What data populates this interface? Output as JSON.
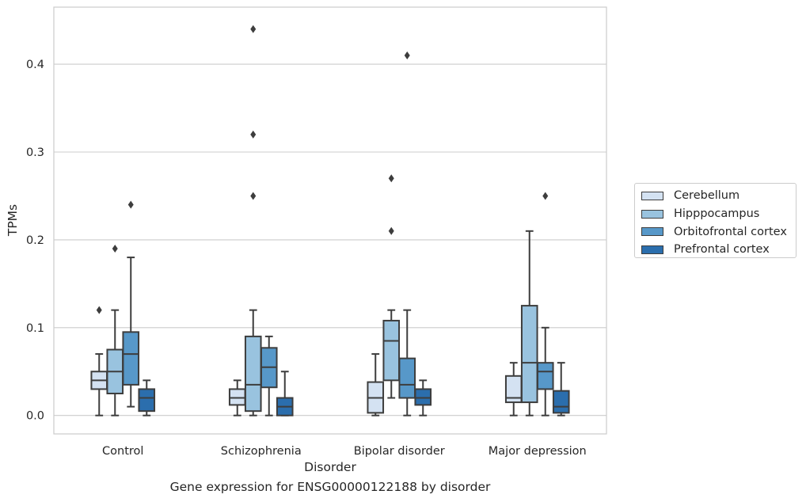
{
  "chart_data": {
    "type": "box",
    "xlabel": "Disorder",
    "ylabel": "TPMs",
    "ylim": [
      -0.021,
      0.465
    ],
    "yticks": [
      0.0,
      0.1,
      0.2,
      0.3,
      0.4
    ],
    "ytick_labels": [
      "0.0",
      "0.1",
      "0.2",
      "0.3",
      "0.4"
    ],
    "grid": "horizontal",
    "legend_position": "right",
    "categories": [
      "Control",
      "Schizophrenia",
      "Bipolar disorder",
      "Major depression"
    ],
    "series": [
      {
        "name": "Cerebellum",
        "color": "#d4e2f2",
        "boxes": [
          {
            "whisker_low": 0.0,
            "q1": 0.03,
            "median": 0.04,
            "q3": 0.05,
            "whisker_high": 0.07,
            "outliers": [
              0.12
            ]
          },
          {
            "whisker_low": 0.0,
            "q1": 0.012,
            "median": 0.02,
            "q3": 0.03,
            "whisker_high": 0.04,
            "outliers": []
          },
          {
            "whisker_low": 0.0,
            "q1": 0.003,
            "median": 0.02,
            "q3": 0.038,
            "whisker_high": 0.07,
            "outliers": []
          },
          {
            "whisker_low": 0.0,
            "q1": 0.015,
            "median": 0.02,
            "q3": 0.045,
            "whisker_high": 0.06,
            "outliers": []
          }
        ]
      },
      {
        "name": "Hipppocampus",
        "color": "#99c3df",
        "boxes": [
          {
            "whisker_low": 0.0,
            "q1": 0.025,
            "median": 0.05,
            "q3": 0.075,
            "whisker_high": 0.12,
            "outliers": [
              0.19
            ]
          },
          {
            "whisker_low": 0.0,
            "q1": 0.005,
            "median": 0.035,
            "q3": 0.09,
            "whisker_high": 0.12,
            "outliers": [
              0.44,
              0.32,
              0.25
            ]
          },
          {
            "whisker_low": 0.02,
            "q1": 0.04,
            "median": 0.085,
            "q3": 0.108,
            "whisker_high": 0.12,
            "outliers": [
              0.27,
              0.21
            ]
          },
          {
            "whisker_low": 0.0,
            "q1": 0.015,
            "median": 0.06,
            "q3": 0.125,
            "whisker_high": 0.21,
            "outliers": []
          }
        ]
      },
      {
        "name": "Orbitofrontal cortex",
        "color": "#5798c9",
        "boxes": [
          {
            "whisker_low": 0.01,
            "q1": 0.035,
            "median": 0.07,
            "q3": 0.095,
            "whisker_high": 0.18,
            "outliers": [
              0.24
            ]
          },
          {
            "whisker_low": 0.0,
            "q1": 0.032,
            "median": 0.055,
            "q3": 0.077,
            "whisker_high": 0.09,
            "outliers": []
          },
          {
            "whisker_low": 0.0,
            "q1": 0.02,
            "median": 0.035,
            "q3": 0.065,
            "whisker_high": 0.12,
            "outliers": [
              0.41
            ]
          },
          {
            "whisker_low": 0.0,
            "q1": 0.03,
            "median": 0.05,
            "q3": 0.06,
            "whisker_high": 0.1,
            "outliers": [
              0.25
            ]
          }
        ]
      },
      {
        "name": "Prefrontal cortex",
        "color": "#2b6ead",
        "boxes": [
          {
            "whisker_low": 0.0,
            "q1": 0.005,
            "median": 0.02,
            "q3": 0.03,
            "whisker_high": 0.04,
            "outliers": []
          },
          {
            "whisker_low": 0.0,
            "q1": 0.0,
            "median": 0.01,
            "q3": 0.02,
            "whisker_high": 0.05,
            "outliers": []
          },
          {
            "whisker_low": 0.0,
            "q1": 0.012,
            "median": 0.02,
            "q3": 0.03,
            "whisker_high": 0.04,
            "outliers": []
          },
          {
            "whisker_low": 0.0,
            "q1": 0.003,
            "median": 0.01,
            "q3": 0.028,
            "whisker_high": 0.06,
            "outliers": []
          }
        ]
      }
    ],
    "caption": "Gene expression for ENSG00000122188 by disorder"
  }
}
